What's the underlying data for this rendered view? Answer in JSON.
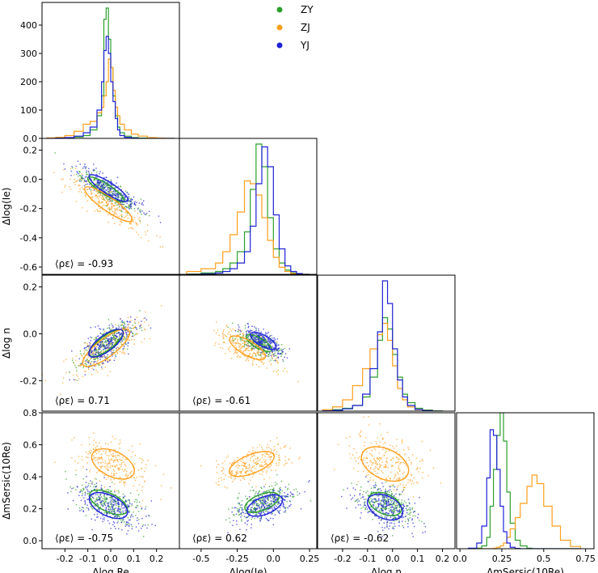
{
  "colors": {
    "ZY": "#2ca02c",
    "ZJ": "#ff9f1c",
    "YJ": "#1f22d8"
  },
  "legend": {
    "entries": [
      "ZY",
      "ZJ",
      "YJ"
    ],
    "placement": "top-center"
  },
  "chart_data": [
    {
      "type": "histogram",
      "panel": "r0c0",
      "ylabel": "",
      "ylim": [
        0,
        480
      ],
      "yticks": [
        0,
        100,
        200,
        300,
        400
      ],
      "xlim": [
        -0.3,
        0.3
      ],
      "bins": [
        -0.28,
        -0.24,
        -0.2,
        -0.16,
        -0.12,
        -0.09,
        -0.06,
        -0.04,
        -0.03,
        -0.02,
        -0.01,
        0.0,
        0.01,
        0.02,
        0.03,
        0.04,
        0.06,
        0.09,
        0.12,
        0.16,
        0.2,
        0.24,
        0.28
      ],
      "series": [
        {
          "name": "ZY",
          "counts": [
            0,
            1,
            2,
            5,
            10,
            30,
            80,
            150,
            420,
            460,
            350,
            250,
            150,
            80,
            40,
            20,
            8,
            3,
            1,
            0,
            0,
            0
          ]
        },
        {
          "name": "ZJ",
          "counts": [
            2,
            4,
            10,
            25,
            50,
            60,
            90,
            110,
            150,
            200,
            280,
            250,
            170,
            110,
            80,
            50,
            30,
            15,
            8,
            3,
            1,
            0
          ]
        },
        {
          "name": "YJ",
          "counts": [
            0,
            1,
            3,
            8,
            20,
            40,
            100,
            200,
            310,
            360,
            300,
            200,
            130,
            70,
            30,
            10,
            4,
            1,
            0,
            0,
            0,
            0
          ]
        }
      ]
    },
    {
      "type": "scatter",
      "panel": "r1c0",
      "ylabel": "Δlog(Ie)",
      "xlim": [
        -0.3,
        0.3
      ],
      "ylim": [
        -0.65,
        0.28
      ],
      "yticks": [
        0.2,
        0.0,
        -0.2,
        -0.4,
        -0.6
      ],
      "annotation": "⟨ρε⟩ = -0.93",
      "ellipses": [
        {
          "name": "ZY",
          "cx": -0.02,
          "cy": -0.07,
          "rx": 0.19,
          "ry": 0.045,
          "angle": -33
        },
        {
          "name": "ZJ",
          "cx": -0.01,
          "cy": -0.17,
          "rx": 0.25,
          "ry": 0.06,
          "angle": -35
        },
        {
          "name": "YJ",
          "cx": -0.01,
          "cy": -0.06,
          "rx": 0.2,
          "ry": 0.05,
          "angle": -33
        }
      ]
    },
    {
      "type": "histogram",
      "panel": "r1c1",
      "xlim": [
        -0.65,
        0.3
      ],
      "ylim": [
        0,
        480
      ],
      "bins": [
        -0.6,
        -0.5,
        -0.4,
        -0.35,
        -0.3,
        -0.25,
        -0.2,
        -0.16,
        -0.12,
        -0.08,
        -0.04,
        0.0,
        0.04,
        0.08,
        0.12,
        0.16,
        0.2,
        0.25
      ],
      "series": [
        {
          "name": "ZY",
          "counts": [
            1,
            5,
            10,
            20,
            40,
            80,
            150,
            300,
            460,
            380,
            200,
            90,
            40,
            15,
            5,
            2,
            0
          ]
        },
        {
          "name": "ZJ",
          "counts": [
            10,
            20,
            40,
            80,
            140,
            220,
            330,
            320,
            280,
            200,
            120,
            60,
            25,
            10,
            3,
            1,
            0
          ]
        },
        {
          "name": "YJ",
          "counts": [
            0,
            2,
            5,
            10,
            20,
            40,
            80,
            170,
            320,
            450,
            380,
            210,
            90,
            30,
            10,
            3,
            0
          ]
        }
      ]
    },
    {
      "type": "scatter",
      "panel": "r2c0",
      "ylabel": "Δlog n",
      "xlim": [
        -0.3,
        0.3
      ],
      "ylim": [
        -0.33,
        0.25
      ],
      "yticks": [
        0.2,
        0.0,
        -0.2
      ],
      "annotation": "⟨ρε⟩ = 0.71",
      "ellipses": [
        {
          "name": "ZY",
          "cx": -0.02,
          "cy": -0.04,
          "rx": 0.18,
          "ry": 0.06,
          "angle": 37
        },
        {
          "name": "ZJ",
          "cx": -0.02,
          "cy": -0.06,
          "rx": 0.25,
          "ry": 0.08,
          "angle": 37
        },
        {
          "name": "YJ",
          "cx": -0.02,
          "cy": -0.04,
          "rx": 0.18,
          "ry": 0.07,
          "angle": 37
        }
      ]
    },
    {
      "type": "scatter",
      "panel": "r2c1",
      "xlim": [
        -0.65,
        0.3
      ],
      "ylim": [
        -0.33,
        0.25
      ],
      "annotation": "⟨ρε⟩ = -0.61",
      "ellipses": [
        {
          "name": "ZY",
          "cx": -0.1,
          "cy": -0.04,
          "rx": 0.2,
          "ry": 0.07,
          "angle": -30
        },
        {
          "name": "ZJ",
          "cx": -0.18,
          "cy": -0.06,
          "rx": 0.28,
          "ry": 0.1,
          "angle": -30
        },
        {
          "name": "YJ",
          "cx": -0.07,
          "cy": -0.03,
          "rx": 0.2,
          "ry": 0.075,
          "angle": -30
        }
      ]
    },
    {
      "type": "histogram",
      "panel": "r2c2",
      "xlim": [
        -0.3,
        0.25
      ],
      "ylim": [
        0,
        480
      ],
      "bins": [
        -0.28,
        -0.24,
        -0.2,
        -0.16,
        -0.12,
        -0.09,
        -0.06,
        -0.04,
        -0.02,
        0.0,
        0.02,
        0.04,
        0.06,
        0.09,
        0.12,
        0.16,
        0.2
      ],
      "series": [
        {
          "name": "ZY",
          "counts": [
            2,
            5,
            10,
            20,
            50,
            120,
            250,
            330,
            290,
            200,
            120,
            60,
            30,
            10,
            4,
            1
          ]
        },
        {
          "name": "ZJ",
          "counts": [
            5,
            15,
            40,
            90,
            150,
            220,
            270,
            310,
            250,
            160,
            80,
            40,
            15,
            5,
            2,
            0
          ]
        },
        {
          "name": "YJ",
          "counts": [
            1,
            3,
            8,
            20,
            60,
            150,
            280,
            460,
            380,
            220,
            110,
            50,
            20,
            6,
            2,
            0
          ]
        }
      ]
    },
    {
      "type": "scatter",
      "panel": "r3c0",
      "ylabel": "ΔmSersic(10Re)",
      "xlabel": "Δlog Re",
      "xlim": [
        -0.3,
        0.3
      ],
      "ylim": [
        -0.05,
        0.8
      ],
      "xticks": [
        -0.2,
        -0.1,
        0.0,
        0.1,
        0.2
      ],
      "yticks": [
        0.0,
        0.2,
        0.4,
        0.6,
        0.8
      ],
      "annotation": "⟨ρε⟩ = -0.75",
      "ellipses": [
        {
          "name": "ZY",
          "cx": -0.01,
          "cy": 0.24,
          "rx": 0.18,
          "ry": 0.08,
          "angle": -26
        },
        {
          "name": "ZJ",
          "cx": 0.01,
          "cy": 0.48,
          "rx": 0.2,
          "ry": 0.11,
          "angle": -26
        },
        {
          "name": "YJ",
          "cx": -0.01,
          "cy": 0.22,
          "rx": 0.18,
          "ry": 0.09,
          "angle": -26
        }
      ]
    },
    {
      "type": "scatter",
      "panel": "r3c1",
      "xlabel": "Δlog(Ie)",
      "xlim": [
        -0.65,
        0.3
      ],
      "ylim": [
        -0.05,
        0.8
      ],
      "xticks": [
        -0.5,
        -0.25,
        0.0,
        0.25
      ],
      "annotation": "⟨ρε⟩ = 0.62",
      "ellipses": [
        {
          "name": "ZY",
          "cx": -0.08,
          "cy": 0.24,
          "rx": 0.25,
          "ry": 0.11,
          "angle": 22
        },
        {
          "name": "ZJ",
          "cx": -0.15,
          "cy": 0.48,
          "rx": 0.33,
          "ry": 0.13,
          "angle": 22
        },
        {
          "name": "YJ",
          "cx": -0.06,
          "cy": 0.22,
          "rx": 0.26,
          "ry": 0.12,
          "angle": 22
        }
      ]
    },
    {
      "type": "scatter",
      "panel": "r3c2",
      "xlabel": "Δlog n",
      "xlim": [
        -0.3,
        0.25
      ],
      "ylim": [
        -0.05,
        0.8
      ],
      "xticks": [
        -0.2,
        -0.1,
        0.0,
        0.1,
        0.2
      ],
      "annotation": "⟨ρε⟩ = -0.62",
      "ellipses": [
        {
          "name": "ZY",
          "cx": -0.03,
          "cy": 0.23,
          "rx": 0.14,
          "ry": 0.08,
          "angle": -25
        },
        {
          "name": "ZJ",
          "cx": -0.03,
          "cy": 0.48,
          "rx": 0.2,
          "ry": 0.12,
          "angle": -25
        },
        {
          "name": "YJ",
          "cx": -0.03,
          "cy": 0.21,
          "rx": 0.15,
          "ry": 0.09,
          "angle": -25
        }
      ]
    },
    {
      "type": "histogram",
      "panel": "r3c3",
      "xlabel": "ΔmSersic(10Re)",
      "xlim": [
        -0.02,
        0.8
      ],
      "ylim": [
        0,
        480
      ],
      "xticks": [
        0.0,
        0.25,
        0.5,
        0.75
      ],
      "bins": [
        0.05,
        0.1,
        0.13,
        0.16,
        0.18,
        0.2,
        0.22,
        0.24,
        0.26,
        0.28,
        0.3,
        0.33,
        0.36,
        0.4,
        0.43,
        0.46,
        0.5,
        0.55,
        0.6,
        0.66,
        0.72
      ],
      "series": [
        {
          "name": "ZY",
          "counts": [
            0,
            2,
            10,
            40,
            150,
            280,
            400,
            480,
            380,
            200,
            90,
            30,
            10,
            2,
            0,
            0,
            0,
            0,
            0,
            0
          ]
        },
        {
          "name": "ZJ",
          "counts": [
            0,
            0,
            0,
            0,
            0,
            2,
            5,
            10,
            20,
            40,
            70,
            110,
            160,
            220,
            260,
            230,
            150,
            80,
            30,
            8
          ]
        },
        {
          "name": "YJ",
          "counts": [
            2,
            20,
            80,
            250,
            420,
            400,
            280,
            150,
            60,
            20,
            5,
            1,
            0,
            0,
            0,
            0,
            0,
            0,
            0,
            0
          ]
        }
      ]
    }
  ]
}
